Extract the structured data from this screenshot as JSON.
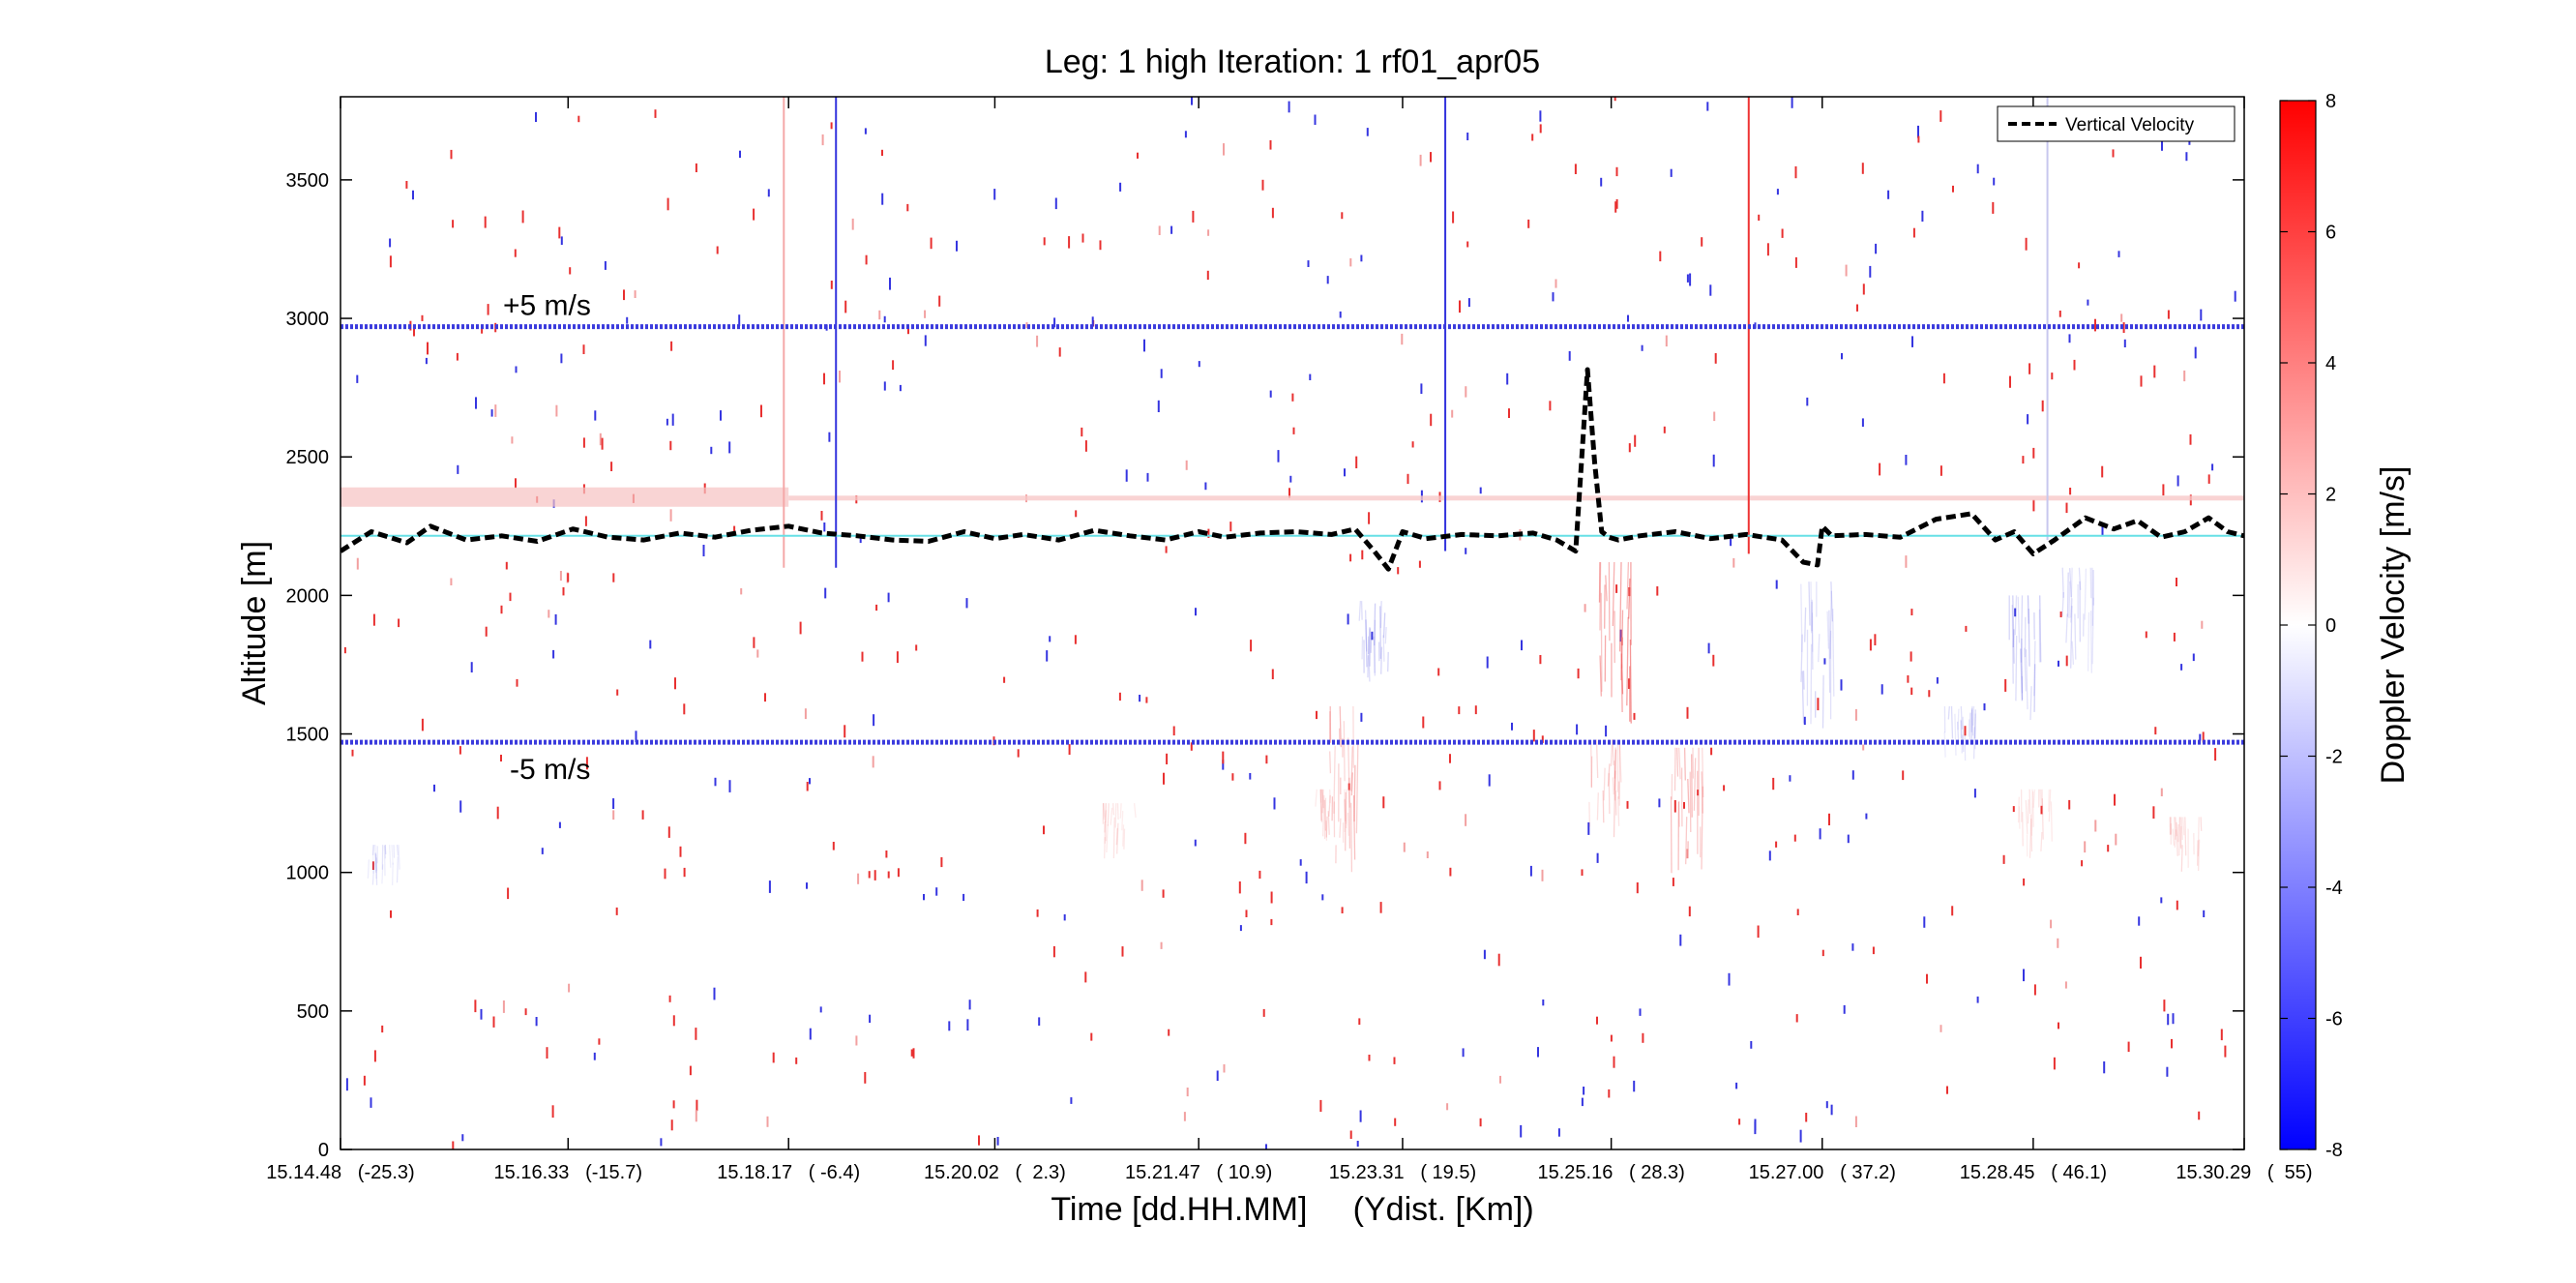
{
  "chart_data": {
    "type": "heatmap",
    "title": "Leg: 1 high Iteration: 1  rf01_apr05",
    "xlabel": "Time [dd.HH.MM]     (Ydist. [Km])",
    "ylabel": "Altitude [m]",
    "colorbar_label": "Doppler Velocity [m/s]",
    "x_tick_labels": [
      "15.14.48   (-25.3)",
      "15.16.33   (-15.7)",
      "15.18.17   ( -6.4)",
      "15.20.02   (  2.3)",
      "15.21.47   ( 10.9)",
      "15.23.31   ( 19.5)",
      "15.25.16   ( 28.3)",
      "15.27.00   ( 37.2)",
      "15.28.45   ( 46.1)",
      "15.30.29   (  55)"
    ],
    "x_tick_positions_km": [
      -25.3,
      -15.7,
      -6.4,
      2.3,
      10.9,
      19.5,
      28.3,
      37.2,
      46.1,
      55
    ],
    "xlim_km": [
      -25.3,
      55
    ],
    "y_ticks": [
      0,
      500,
      1000,
      1500,
      2000,
      2500,
      3000,
      3500
    ],
    "ylim": [
      0,
      3800
    ],
    "colorbar_ticks": [
      8,
      6,
      4,
      2,
      0,
      -2,
      -4,
      -6,
      -8
    ],
    "colorbar_range": [
      -8,
      8
    ],
    "colormap": {
      "negative": "#0000ff",
      "zero": "#ffffff",
      "positive": "#ff0000"
    },
    "annotations": [
      {
        "text": "+5 m/s",
        "ref_altitude": 2970
      },
      {
        "text": "-5 m/s",
        "ref_altitude": 1470
      }
    ],
    "reference_lines": {
      "plus5_altitude": 2970,
      "minus5_altitude": 1470,
      "flight_altitude": 2215,
      "plus5_color": "#3b3bdd",
      "minus5_color": "#3b3bdd",
      "flight_color": "#66e0e6"
    },
    "legend": {
      "entry": "Vertical Velocity",
      "placement": "top-right",
      "style": "black dashed"
    },
    "series": [
      {
        "name": "Vertical Velocity",
        "x_km": [
          -25.3,
          -24,
          -22.5,
          -21.5,
          -20,
          -18.5,
          -17,
          -15.5,
          -14,
          -12.5,
          -11,
          -9.5,
          -8,
          -6.4,
          -5,
          -3.5,
          -2,
          -0.5,
          1,
          2.3,
          3.5,
          5,
          6.5,
          8,
          9.5,
          10.9,
          12,
          13.5,
          15,
          16.5,
          17.5,
          18.3,
          18.9,
          19.5,
          20.5,
          22,
          23.5,
          25,
          26,
          26.8,
          27.3,
          27.6,
          27.9,
          28.2,
          28.6,
          29.5,
          31,
          32.5,
          34,
          35.5,
          36.4,
          37,
          37.2,
          37.6,
          39,
          40.5,
          42,
          43.5,
          44.5,
          45.3,
          46.1,
          47,
          48.3,
          49.5,
          50.5,
          51.5,
          52.5,
          53.5,
          54.3,
          55
        ],
        "values": [
          2160,
          2230,
          2190,
          2250,
          2200,
          2215,
          2195,
          2240,
          2210,
          2200,
          2225,
          2210,
          2235,
          2250,
          2225,
          2215,
          2200,
          2195,
          2230,
          2205,
          2220,
          2200,
          2235,
          2215,
          2200,
          2230,
          2210,
          2225,
          2230,
          2220,
          2240,
          2160,
          2095,
          2230,
          2205,
          2220,
          2215,
          2225,
          2200,
          2160,
          2815,
          2480,
          2230,
          2210,
          2200,
          2215,
          2230,
          2205,
          2220,
          2200,
          2120,
          2110,
          2250,
          2215,
          2220,
          2210,
          2275,
          2295,
          2200,
          2230,
          2150,
          2200,
          2280,
          2240,
          2270,
          2210,
          2230,
          2280,
          2230,
          2215
        ]
      }
    ],
    "echo_features": [
      {
        "polarity": "positive",
        "x_km": 28.5,
        "alt_min": 1500,
        "alt_max": 2120,
        "strength": 0.55
      },
      {
        "polarity": "positive",
        "x_km": 31.5,
        "alt_min": 950,
        "alt_max": 1450,
        "strength": 0.35
      },
      {
        "polarity": "positive",
        "x_km": 17.0,
        "alt_min": 1000,
        "alt_max": 1600,
        "strength": 0.35
      },
      {
        "polarity": "positive",
        "x_km": 28.0,
        "alt_min": 1100,
        "alt_max": 1480,
        "strength": 0.25
      },
      {
        "polarity": "positive",
        "x_km": 16.5,
        "alt_min": 1100,
        "alt_max": 1300,
        "strength": 0.2
      },
      {
        "polarity": "negative",
        "x_km": 18.2,
        "alt_min": 1680,
        "alt_max": 1980,
        "strength": 0.28
      },
      {
        "polarity": "negative",
        "x_km": 37.0,
        "alt_min": 1500,
        "alt_max": 2050,
        "strength": 0.25
      },
      {
        "polarity": "negative",
        "x_km": 45.7,
        "alt_min": 1550,
        "alt_max": 2000,
        "strength": 0.3
      },
      {
        "polarity": "negative",
        "x_km": 48.0,
        "alt_min": 1700,
        "alt_max": 2100,
        "strength": 0.22
      },
      {
        "polarity": "negative",
        "x_km": 43.0,
        "alt_min": 1400,
        "alt_max": 1600,
        "strength": 0.2
      },
      {
        "polarity": "positive",
        "x_km": 52.5,
        "alt_min": 1000,
        "alt_max": 1200,
        "strength": 0.2
      },
      {
        "polarity": "positive",
        "x_km": 7.5,
        "alt_min": 1050,
        "alt_max": 1250,
        "strength": 0.15
      },
      {
        "polarity": "positive",
        "x_km": 46.2,
        "alt_min": 1050,
        "alt_max": 1300,
        "strength": 0.15
      },
      {
        "polarity": "negative",
        "x_km": -23.5,
        "alt_min": 950,
        "alt_max": 1100,
        "strength": 0.15
      }
    ],
    "vertical_lines": [
      {
        "x_km": -6.6,
        "color": "#f4a8a8",
        "alt_min": 2100,
        "alt_max": 3800
      },
      {
        "x_km": -4.4,
        "color": "#3333dd",
        "alt_min": 2100,
        "alt_max": 3800
      },
      {
        "x_km": 21.3,
        "color": "#3333dd",
        "alt_min": 2160,
        "alt_max": 3800
      },
      {
        "x_km": 34.1,
        "color": "#ee3333",
        "alt_min": 2150,
        "alt_max": 3800
      },
      {
        "x_km": 46.7,
        "color": "#c8c8ee",
        "alt_min": 2200,
        "alt_max": 3800
      }
    ],
    "surface_band": {
      "alt_min": 2320,
      "alt_max": 2390,
      "x_km_start": -25.3,
      "x_km_end": -6.4,
      "color": "#f7c2c2"
    }
  }
}
